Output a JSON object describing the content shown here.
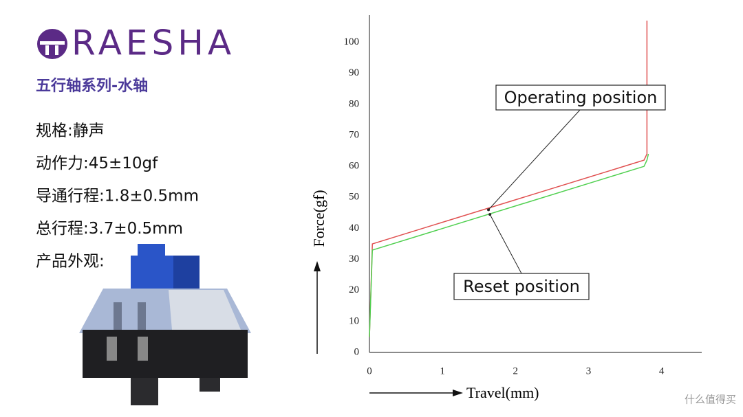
{
  "brand": {
    "logo": "RAESHA",
    "subtitle": "五行轴系列-水轴",
    "specs": [
      "规格:静声",
      "动作力:45±10gf",
      "导通行程:1.8±0.5mm",
      "总行程:3.7±0.5mm",
      "产品外观:"
    ]
  },
  "chart_data": {
    "type": "line",
    "x_label": "Travel(mm)",
    "y_label": "Force(gf)",
    "xlim": [
      0,
      4.55
    ],
    "ylim": [
      0,
      107
    ],
    "xticks": [
      0,
      1,
      2,
      3,
      4
    ],
    "yticks": [
      0,
      10,
      20,
      30,
      40,
      50,
      60,
      70,
      80,
      90,
      100
    ],
    "grid": false,
    "series": [
      {
        "color": "#e05050",
        "x": [
          0,
          0.04,
          3.76,
          3.8,
          3.8
        ],
        "values": [
          5,
          35,
          62,
          64,
          107
        ]
      },
      {
        "color": "#50d050",
        "x": [
          0,
          0.04,
          3.76,
          3.8,
          3.82
        ],
        "values": [
          5,
          33,
          60,
          62,
          64
        ]
      }
    ],
    "annotations": [
      {
        "text": "Operating position",
        "x": 1.63,
        "y": 46
      },
      {
        "text": "Reset position",
        "x": 1.65,
        "y": 44.5
      }
    ]
  },
  "watermark": "什么值得买"
}
